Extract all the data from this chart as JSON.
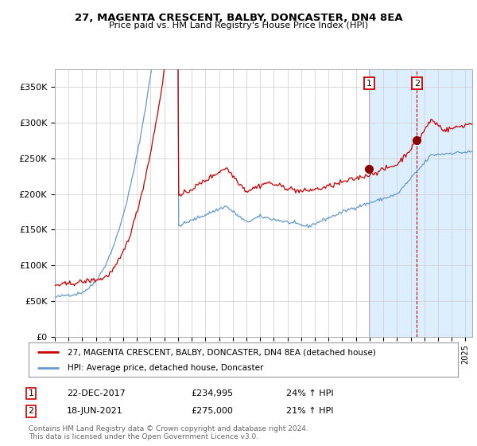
{
  "title1": "27, MAGENTA CRESCENT, BALBY, DONCASTER, DN4 8EA",
  "title2": "Price paid vs. HM Land Registry's House Price Index (HPI)",
  "ylabel_ticks": [
    "£0",
    "£50K",
    "£100K",
    "£150K",
    "£200K",
    "£250K",
    "£300K",
    "£350K"
  ],
  "ytick_values": [
    0,
    50000,
    100000,
    150000,
    200000,
    250000,
    300000,
    350000
  ],
  "ylim": [
    0,
    375000
  ],
  "xlim_start": 1995.0,
  "xlim_end": 2025.5,
  "sale1_date": 2017.97,
  "sale1_price": 234995,
  "sale2_date": 2021.46,
  "sale2_price": 275000,
  "sale1_label": "1",
  "sale2_label": "2",
  "legend_line1": "27, MAGENTA CRESCENT, BALBY, DONCASTER, DN4 8EA (detached house)",
  "legend_line2": "HPI: Average price, detached house, Doncaster",
  "table_row1": [
    "1",
    "22-DEC-2017",
    "£234,995",
    "24% ↑ HPI"
  ],
  "table_row2": [
    "2",
    "18-JUN-2021",
    "£275,000",
    "21% ↑ HPI"
  ],
  "footnote1": "Contains HM Land Registry data © Crown copyright and database right 2024.",
  "footnote2": "This data is licensed under the Open Government Licence v3.0.",
  "hpi_color": "#6699cc",
  "price_color": "#cc0000",
  "dot_color": "#8b0000",
  "shade_color": "#ddeeff",
  "grid_color": "#cccccc",
  "bg_color": "#ffffff"
}
